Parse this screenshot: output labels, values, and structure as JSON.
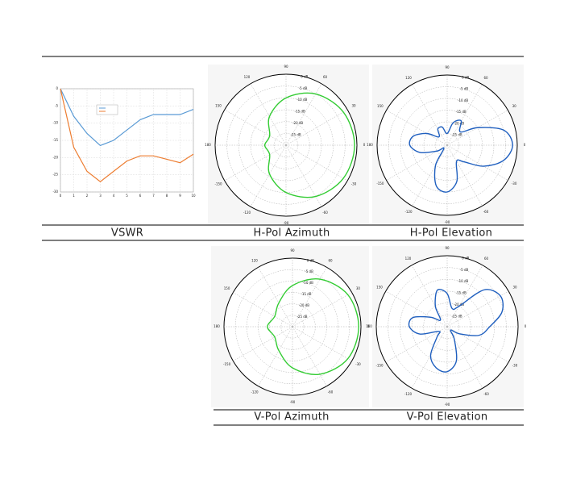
{
  "chart_data": [
    {
      "type": "line",
      "title": "VSWR",
      "x": [
        0,
        1,
        2,
        3,
        4,
        5,
        6,
        7,
        8,
        9,
        10
      ],
      "xlim": [
        0,
        10
      ],
      "xticks": [
        0,
        1,
        2,
        3,
        4,
        5,
        6,
        7,
        8,
        9,
        10
      ],
      "ylim": [
        -30,
        0
      ],
      "yticks": [
        -30,
        -25,
        -20,
        -15,
        -10,
        -5,
        0
      ],
      "grid": true,
      "series": [
        {
          "color": "#5b9bd5",
          "values": [
            0,
            -8,
            -13,
            -16.5,
            -15,
            -12,
            -9,
            -7.5,
            -7.5,
            -7.5,
            -6
          ]
        },
        {
          "color": "#ed7d31",
          "values": [
            0,
            -17,
            -24,
            -27,
            -24,
            -21,
            -19.5,
            -19.5,
            -20.5,
            -21.5,
            -19
          ]
        }
      ]
    },
    {
      "type": "polar",
      "title": "H-Pol Azimuth",
      "theta": [
        0,
        30,
        60,
        90,
        120,
        150,
        180,
        210,
        240,
        270,
        300,
        330
      ],
      "thetaticks": [
        0,
        30,
        60,
        90,
        120,
        150,
        180,
        -150,
        -120,
        -90,
        -60,
        -30
      ],
      "rlim": [
        -30,
        0
      ],
      "rticks": [
        {
          "value": 0,
          "label": "0 dB"
        },
        {
          "value": -5,
          "label": "-5 dB"
        },
        {
          "value": -10,
          "label": "-10 dB"
        },
        {
          "value": -15,
          "label": "-15 dB"
        },
        {
          "value": -20,
          "label": "-20 dB"
        },
        {
          "value": -25,
          "label": "-25 dB"
        }
      ],
      "grid": true,
      "series": [
        {
          "color": "#33cc33",
          "values": [
            -1,
            -2,
            -5,
            -10,
            -16,
            -22,
            -21,
            -22,
            -16,
            -10,
            -5,
            -2
          ]
        }
      ]
    },
    {
      "type": "polar",
      "title": "H-Pol Elevation",
      "theta": [
        0,
        15,
        30,
        45,
        60,
        75,
        90,
        105,
        120,
        135,
        150,
        165,
        180,
        195,
        210,
        225,
        240,
        255,
        270,
        285,
        300,
        315,
        330,
        345
      ],
      "thetaticks": [
        0,
        30,
        60,
        90,
        120,
        150,
        180,
        -150,
        -120,
        -90,
        -60,
        -30
      ],
      "rlim": [
        -30,
        0
      ],
      "rticks": [
        {
          "value": 0,
          "label": "0 dB"
        },
        {
          "value": -5,
          "label": "-5 dB"
        },
        {
          "value": -10,
          "label": "-10 dB"
        },
        {
          "value": -15,
          "label": "-15 dB"
        },
        {
          "value": -20,
          "label": "-20 dB"
        },
        {
          "value": -25,
          "label": "-25 dB"
        }
      ],
      "grid": true,
      "series": [
        {
          "color": "#1f5fbf",
          "values": [
            -2,
            -5,
            -15,
            -22,
            -18,
            -20,
            -25,
            -22,
            -22,
            -25,
            -20,
            -15,
            -14,
            -18,
            -25,
            -28,
            -20,
            -12,
            -10,
            -14,
            -22,
            -20,
            -12,
            -5
          ]
        }
      ]
    },
    {
      "type": "polar",
      "title": "V-Pol Azimuth",
      "theta": [
        0,
        30,
        60,
        90,
        120,
        150,
        180,
        210,
        240,
        270,
        300,
        330
      ],
      "thetaticks": [
        0,
        30,
        60,
        90,
        120,
        150,
        180,
        -150,
        -120,
        -90,
        -60,
        -30
      ],
      "rlim": [
        -30,
        0
      ],
      "rticks": [
        {
          "value": 0,
          "label": "0 dB"
        },
        {
          "value": -5,
          "label": "-5 dB"
        },
        {
          "value": -10,
          "label": "-10 dB"
        },
        {
          "value": -15,
          "label": "-15 dB"
        },
        {
          "value": -20,
          "label": "-20 dB"
        },
        {
          "value": -25,
          "label": "-25 dB"
        }
      ],
      "grid": true,
      "series": [
        {
          "color": "#33cc33",
          "values": [
            -1,
            -2,
            -6,
            -12,
            -18,
            -21,
            -19,
            -21,
            -18,
            -12,
            -6,
            -2
          ]
        }
      ]
    },
    {
      "type": "polar",
      "title": "V-Pol Elevation",
      "theta": [
        0,
        15,
        30,
        45,
        60,
        75,
        90,
        105,
        120,
        135,
        150,
        165,
        180,
        195,
        210,
        225,
        240,
        255,
        270,
        285,
        300,
        315,
        330,
        345
      ],
      "thetaticks": [
        0,
        30,
        60,
        90,
        120,
        150,
        180,
        -150,
        -120,
        -90,
        -60,
        -30
      ],
      "rlim": [
        -30,
        0
      ],
      "rticks": [
        {
          "value": 0,
          "label": "0 dB"
        },
        {
          "value": -5,
          "label": "-5 dB"
        },
        {
          "value": -10,
          "label": "-10 dB"
        },
        {
          "value": -15,
          "label": "-15 dB"
        },
        {
          "value": -20,
          "label": "-20 dB"
        },
        {
          "value": -25,
          "label": "-25 dB"
        }
      ],
      "grid": true,
      "series": [
        {
          "color": "#1f5fbf",
          "values": [
            -12,
            -6,
            -4,
            -8,
            -20,
            -22,
            -16,
            -14,
            -20,
            -26,
            -22,
            -15,
            -14,
            -18,
            -26,
            -24,
            -16,
            -12,
            -11,
            -15,
            -24,
            -28,
            -24,
            -16
          ]
        }
      ]
    }
  ]
}
